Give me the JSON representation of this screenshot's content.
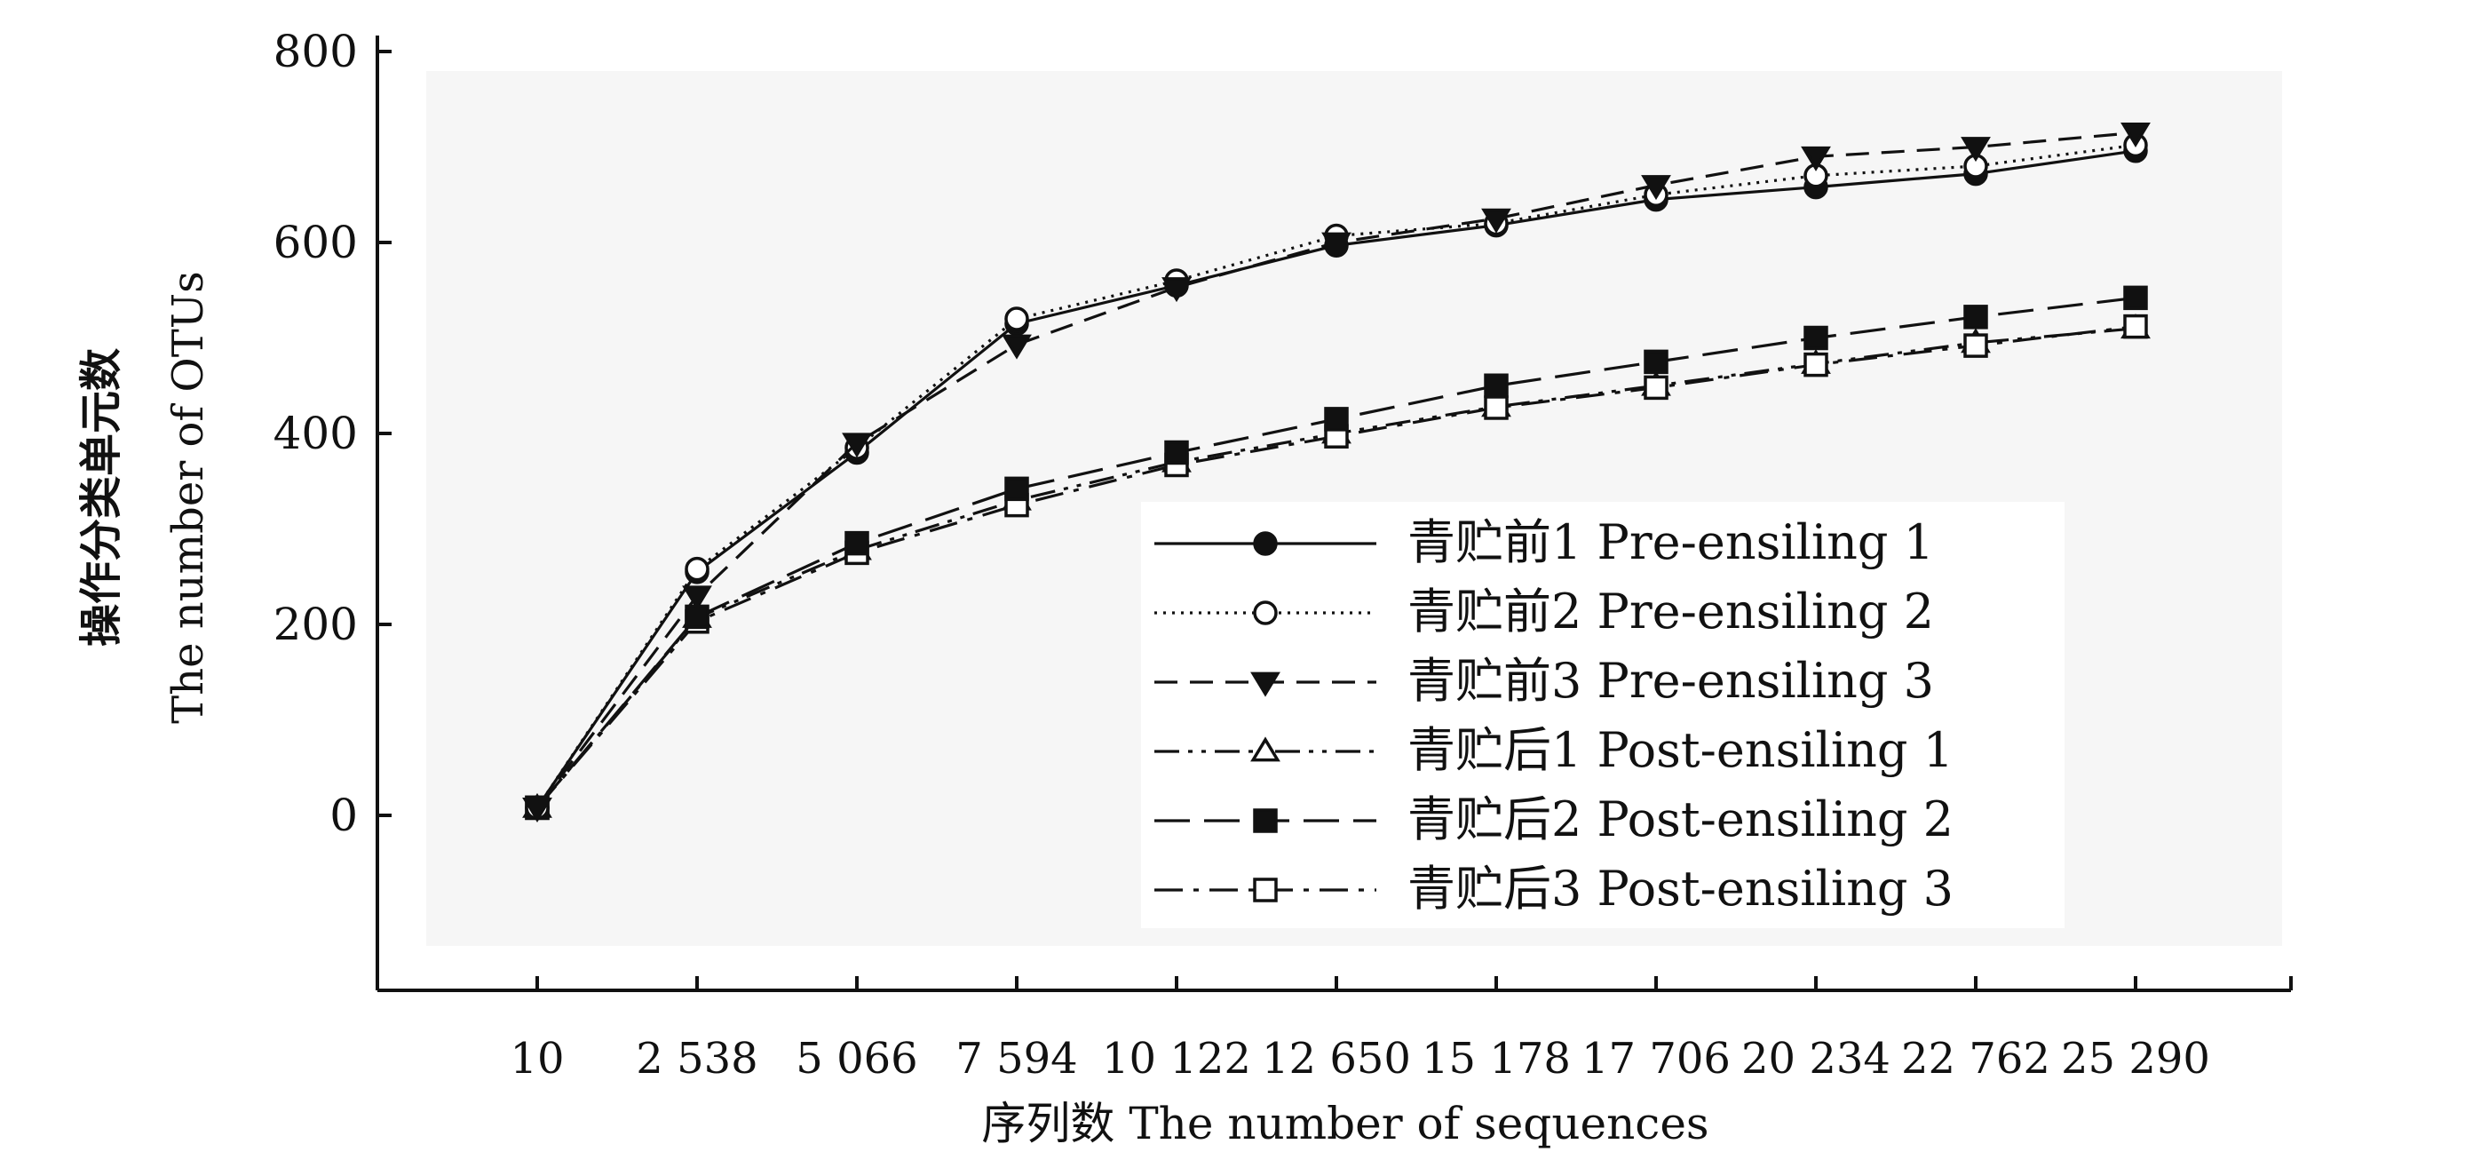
{
  "chart_data": {
    "type": "line",
    "ylabel_cn": "操作分类单元数",
    "ylabel_en": "The number of OTUs",
    "xlabel": "序列数  The number of sequences",
    "ylim": [
      -180,
      800
    ],
    "yticks": [
      0,
      200,
      400,
      600,
      800
    ],
    "x": [
      10,
      2538,
      5066,
      7594,
      10122,
      12650,
      15178,
      17706,
      20234,
      22762,
      25290
    ],
    "xtick_labels": [
      "10",
      "2 538",
      "5 066",
      "7 594",
      "10 122",
      "12 650",
      "15 178",
      "17 706",
      "20 234",
      "22 762",
      "25 290"
    ],
    "grid": false,
    "legend_position": "center-right",
    "series": [
      {
        "name": "青贮前1  Pre-ensiling 1",
        "marker": "circle-filled",
        "dash": "solid",
        "values": [
          8,
          255,
          380,
          515,
          555,
          597,
          618,
          645,
          658,
          672,
          696
        ]
      },
      {
        "name": "青贮前2  Pre-ensiling 2",
        "marker": "circle-open",
        "dash": "dotted",
        "values": [
          8,
          258,
          385,
          520,
          560,
          607,
          620,
          650,
          670,
          680,
          702
        ]
      },
      {
        "name": "青贮前3  Pre-ensiling 3",
        "marker": "triangle-down-filled",
        "dash": "dashed",
        "values": [
          8,
          230,
          390,
          493,
          553,
          600,
          625,
          660,
          690,
          700,
          715
        ]
      },
      {
        "name": "青贮后1  Post-ensiling  1",
        "marker": "triangle-up-open",
        "dash": "dash-dot-dot",
        "values": [
          8,
          207,
          278,
          330,
          370,
          400,
          428,
          450,
          473,
          495,
          510
        ]
      },
      {
        "name": "青贮后2  Post-ensiling  2",
        "marker": "square-filled",
        "dash": "long-dash",
        "values": [
          8,
          208,
          285,
          342,
          380,
          415,
          450,
          475,
          500,
          522,
          542
        ]
      },
      {
        "name": "青贮后3  Post-ensiling  3",
        "marker": "square-open",
        "dash": "dash-dot",
        "values": [
          8,
          203,
          275,
          325,
          367,
          397,
          427,
          448,
          472,
          492,
          512
        ]
      }
    ]
  }
}
